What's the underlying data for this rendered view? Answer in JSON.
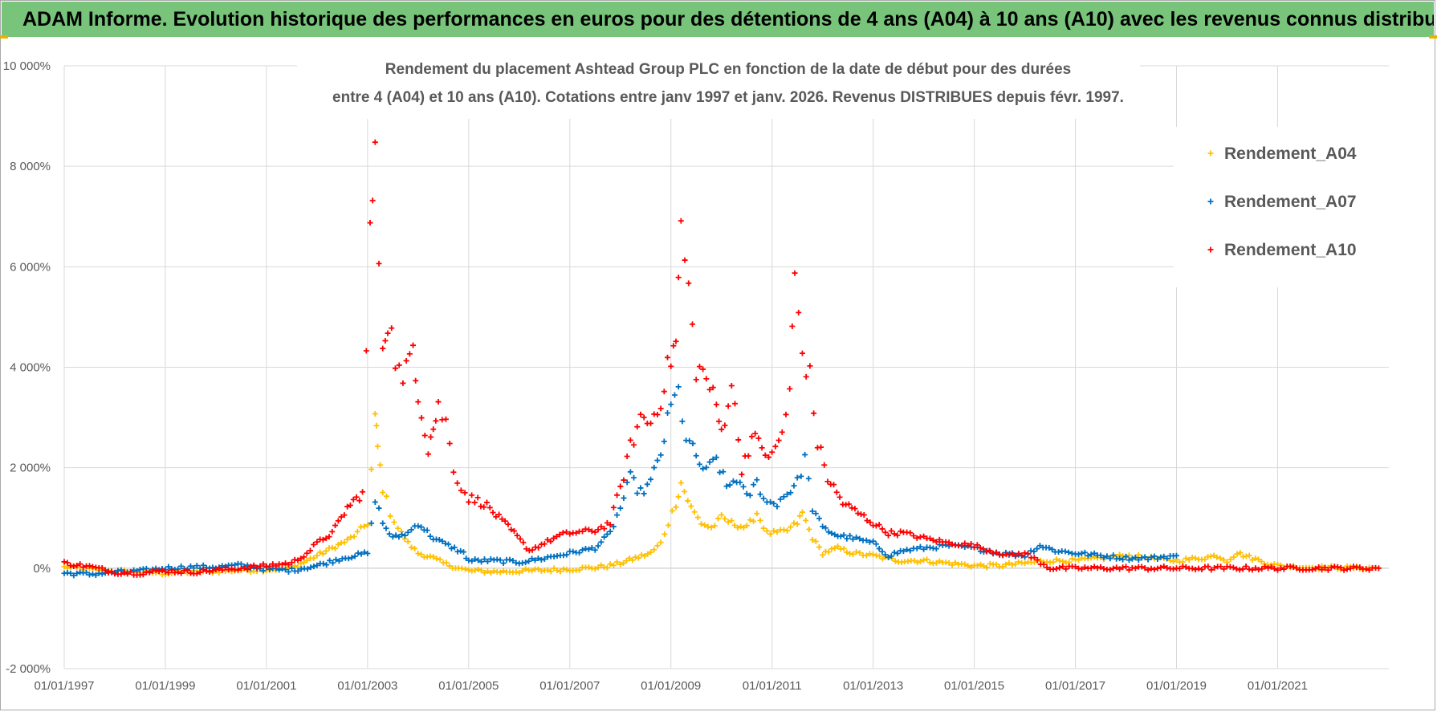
{
  "banner": {
    "title": "ADAM Informe. Evolution historique des performances en euros pour des détentions de 4 ans (A04) à 10 ans (A10) avec les revenus connus distribués"
  },
  "colors": {
    "banner_bg": "#77c47a",
    "A04": "#ffc000",
    "A07": "#0070c0",
    "A10": "#ff0000",
    "grid": "#d9d9d9",
    "text": "#595959"
  },
  "chart_data": {
    "type": "scatter",
    "title": [
      "Rendement du placement Ashtead Group PLC en fonction de la date de début pour des durées",
      "entre 4 (A04) et 10 ans (A10).  Cotations entre janv 1997 et janv. 2026. Revenus DISTRIBUES depuis févr. 1997."
    ],
    "xlabel": "",
    "ylabel": "",
    "x_tick_labels": [
      "01/01/1997",
      "01/01/1999",
      "01/01/2001",
      "01/01/2003",
      "01/01/2005",
      "01/01/2007",
      "01/01/2009",
      "01/01/2011",
      "01/01/2013",
      "01/01/2015",
      "01/01/2017",
      "01/01/2019",
      "01/01/2021"
    ],
    "xlim": [
      1997.0,
      2023.2
    ],
    "y_tick_values": [
      -2000,
      0,
      2000,
      4000,
      6000,
      8000,
      10000
    ],
    "y_tick_labels": [
      "-2 000%",
      "0%",
      "2 000%",
      "4 000%",
      "6 000%",
      "8 000%",
      "10 000%"
    ],
    "ylim": [
      -2000,
      10000
    ],
    "grid": true,
    "legend_position": "top-right",
    "series": [
      {
        "name": "Rendement_A04",
        "marker": "+",
        "x": [
          1997.0,
          1997.5,
          1998.0,
          1998.5,
          1999.0,
          1999.5,
          2000.0,
          2000.5,
          2001.0,
          2001.5,
          2001.8,
          2002.0,
          2002.3,
          2002.6,
          2002.8,
          2003.0,
          2003.15,
          2003.2,
          2003.3,
          2003.45,
          2003.6,
          2003.8,
          2004.0,
          2004.3,
          2004.5,
          2004.8,
          2005.0,
          2005.5,
          2006.0,
          2006.5,
          2007.0,
          2007.5,
          2007.8,
          2008.0,
          2008.3,
          2008.6,
          2008.8,
          2008.95,
          2009.1,
          2009.2,
          2009.4,
          2009.6,
          2009.8,
          2010.0,
          2010.2,
          2010.5,
          2010.7,
          2010.9,
          2011.1,
          2011.3,
          2011.5,
          2011.6,
          2011.8,
          2012.0,
          2012.3,
          2012.6,
          2013.0,
          2013.5,
          2014.0,
          2014.5,
          2015.0,
          2015.5,
          2016.0,
          2016.5,
          2017.0,
          2017.5,
          2018.0,
          2018.5,
          2019.0,
          2019.5,
          2019.8,
          2020.0,
          2020.2,
          2020.5,
          2020.8,
          2021.0,
          2021.5,
          2022.0,
          2022.5,
          2023.0
        ],
        "values": [
          20,
          -20,
          -60,
          -80,
          -100,
          -80,
          -60,
          -40,
          -30,
          0,
          150,
          250,
          400,
          550,
          700,
          900,
          3000,
          2400,
          1600,
          1100,
          800,
          500,
          300,
          200,
          100,
          0,
          -50,
          -70,
          -60,
          -40,
          -20,
          10,
          50,
          100,
          200,
          300,
          500,
          900,
          1300,
          1700,
          1200,
          900,
          800,
          1000,
          900,
          800,
          1100,
          700,
          700,
          750,
          900,
          1100,
          600,
          300,
          400,
          300,
          250,
          150,
          150,
          100,
          50,
          50,
          100,
          150,
          150,
          200,
          250,
          200,
          150,
          200,
          250,
          150,
          300,
          200,
          100,
          50,
          20,
          10,
          5,
          0
        ]
      },
      {
        "name": "Rendement_A07",
        "marker": "+",
        "x": [
          1997.0,
          1997.5,
          1998.0,
          1998.5,
          1999.0,
          1999.5,
          2000.0,
          2000.5,
          2001.0,
          2001.5,
          2002.0,
          2002.5,
          2003.0,
          2003.15,
          2003.3,
          2003.5,
          2003.8,
          2004.0,
          2004.3,
          2004.6,
          2004.9,
          2005.0,
          2005.5,
          2006.0,
          2006.5,
          2007.0,
          2007.5,
          2007.8,
          2008.0,
          2008.2,
          2008.4,
          2008.6,
          2008.8,
          2009.0,
          2009.15,
          2009.3,
          2009.5,
          2009.7,
          2009.9,
          2010.1,
          2010.3,
          2010.5,
          2010.7,
          2010.9,
          2011.1,
          2011.3,
          2011.5,
          2011.65,
          2011.8,
          2012.0,
          2012.3,
          2012.6,
          2013.0,
          2013.3,
          2013.6,
          2014.0,
          2014.5,
          2015.0,
          2015.5,
          2016.0,
          2016.3,
          2016.6,
          2017.0,
          2017.5,
          2018.0,
          2018.5,
          2019.0
        ],
        "values": [
          -100,
          -120,
          -80,
          -60,
          0,
          20,
          20,
          60,
          -20,
          -40,
          50,
          200,
          300,
          1400,
          900,
          600,
          700,
          900,
          600,
          450,
          300,
          150,
          150,
          120,
          200,
          300,
          400,
          700,
          1200,
          1800,
          1500,
          1700,
          2300,
          3200,
          3500,
          2600,
          2200,
          1900,
          2200,
          1600,
          1800,
          1400,
          1700,
          1300,
          1300,
          1500,
          1700,
          2200,
          1200,
          800,
          650,
          600,
          500,
          250,
          350,
          400,
          450,
          400,
          300,
          250,
          450,
          350,
          300,
          250,
          200,
          200,
          250
        ]
      },
      {
        "name": "Rendement_A10",
        "marker": "+",
        "x": [
          1997.0,
          1997.5,
          1998.0,
          1998.5,
          1999.0,
          1999.5,
          2000.0,
          2000.5,
          2001.0,
          2001.5,
          2001.8,
          2002.0,
          2002.3,
          2002.6,
          2002.9,
          2003.05,
          2003.15,
          2003.3,
          2003.4,
          2003.55,
          2003.7,
          2003.9,
          2004.0,
          2004.2,
          2004.3,
          2004.4,
          2004.55,
          2004.7,
          2004.85,
          2005.0,
          2005.3,
          2005.6,
          2005.9,
          2006.2,
          2006.5,
          2006.8,
          2007.0,
          2007.5,
          2007.8,
          2008.0,
          2008.2,
          2008.4,
          2008.6,
          2008.8,
          2009.0,
          2009.1,
          2009.2,
          2009.35,
          2009.5,
          2009.7,
          2009.9,
          2010.0,
          2010.2,
          2010.4,
          2010.6,
          2010.8,
          2011.0,
          2011.2,
          2011.35,
          2011.45,
          2011.6,
          2011.75,
          2011.9,
          2012.1,
          2012.4,
          2012.7,
          2013.0,
          2013.3,
          2013.6,
          2014.0,
          2014.5,
          2015.0,
          2015.3,
          2015.7,
          2016.0,
          2016.5,
          2017.0,
          2018.0,
          2019.0,
          2020.0,
          2021.0,
          2022.0,
          2023.0
        ],
        "values": [
          100,
          30,
          -80,
          -100,
          -50,
          -80,
          -40,
          0,
          50,
          100,
          300,
          500,
          700,
          1200,
          1500,
          6800,
          8000,
          4500,
          5000,
          4200,
          3600,
          4500,
          3500,
          2400,
          2800,
          3200,
          2900,
          2000,
          1600,
          1400,
          1300,
          1000,
          700,
          350,
          500,
          650,
          700,
          750,
          900,
          1600,
          2400,
          3000,
          2900,
          3400,
          4200,
          4500,
          6800,
          5500,
          4000,
          3800,
          3200,
          2700,
          3700,
          2000,
          2600,
          2400,
          2200,
          2700,
          3500,
          5800,
          4300,
          3800,
          2500,
          1800,
          1300,
          1100,
          900,
          700,
          700,
          600,
          500,
          450,
          350,
          250,
          300,
          0,
          0,
          0,
          0,
          0,
          0,
          0,
          0
        ]
      }
    ]
  }
}
